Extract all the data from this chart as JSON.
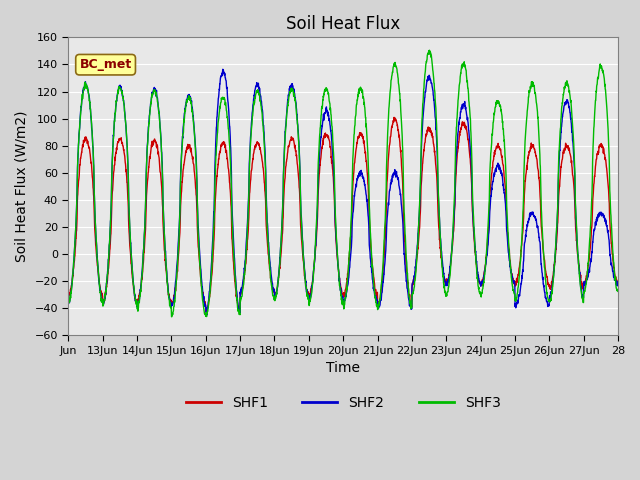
{
  "title": "Soil Heat Flux",
  "xlabel": "Time",
  "ylabel": "Soil Heat Flux (W/m2)",
  "ylim": [
    -60,
    160
  ],
  "yticks": [
    -60,
    -40,
    -20,
    0,
    20,
    40,
    60,
    80,
    100,
    120,
    140,
    160
  ],
  "xlim": [
    12,
    28
  ],
  "xtick_days": [
    12,
    13,
    14,
    15,
    16,
    17,
    18,
    19,
    20,
    21,
    22,
    23,
    24,
    25,
    26,
    27,
    28
  ],
  "xtick_labels": [
    "Jun",
    "13Jun",
    "14Jun",
    "15Jun",
    "16Jun",
    "17Jun",
    "18Jun",
    "19Jun",
    "20Jun",
    "21Jun",
    "22Jun",
    "23Jun",
    "24Jun",
    "25Jun",
    "26Jun",
    "27Jun",
    "28"
  ],
  "shf1_color": "#cc0000",
  "shf2_color": "#0000cc",
  "shf3_color": "#00bb00",
  "legend_label1": "SHF1",
  "legend_label2": "SHF2",
  "legend_label3": "SHF3",
  "annotation_text": "BC_met",
  "bg_color": "#d4d4d4",
  "plot_bg_color": "#e8e8e8",
  "title_fontsize": 12,
  "axis_fontsize": 10,
  "tick_fontsize": 8,
  "legend_fontsize": 10,
  "linewidth": 1.0,
  "day_peaks_shf1": [
    85,
    85,
    84,
    80,
    82,
    82,
    85,
    89,
    89,
    100,
    93,
    97,
    80,
    80,
    80,
    80
  ],
  "day_peaks_shf2": [
    125,
    123,
    122,
    117,
    135,
    125,
    125,
    106,
    60,
    60,
    131,
    110,
    65,
    30,
    113,
    30
  ],
  "day_peaks_shf3": [
    125,
    123,
    121,
    116,
    116,
    120,
    122,
    122,
    122,
    140,
    149,
    140,
    113,
    126,
    126,
    138
  ],
  "day_troughs_shf1": [
    -30,
    -35,
    -35,
    -37,
    -43,
    -28,
    -30,
    -30,
    -30,
    -38,
    -22,
    -22,
    -22,
    -22,
    -25,
    -22
  ],
  "day_troughs_shf2": [
    -35,
    -37,
    -38,
    -38,
    -43,
    -28,
    -32,
    -33,
    -35,
    -40,
    -22,
    -22,
    -22,
    -38,
    -32,
    -22
  ],
  "day_troughs_shf3": [
    -35,
    -37,
    -40,
    -45,
    -45,
    -33,
    -33,
    -36,
    -38,
    -40,
    -30,
    -30,
    -30,
    -35,
    -35,
    -28
  ]
}
